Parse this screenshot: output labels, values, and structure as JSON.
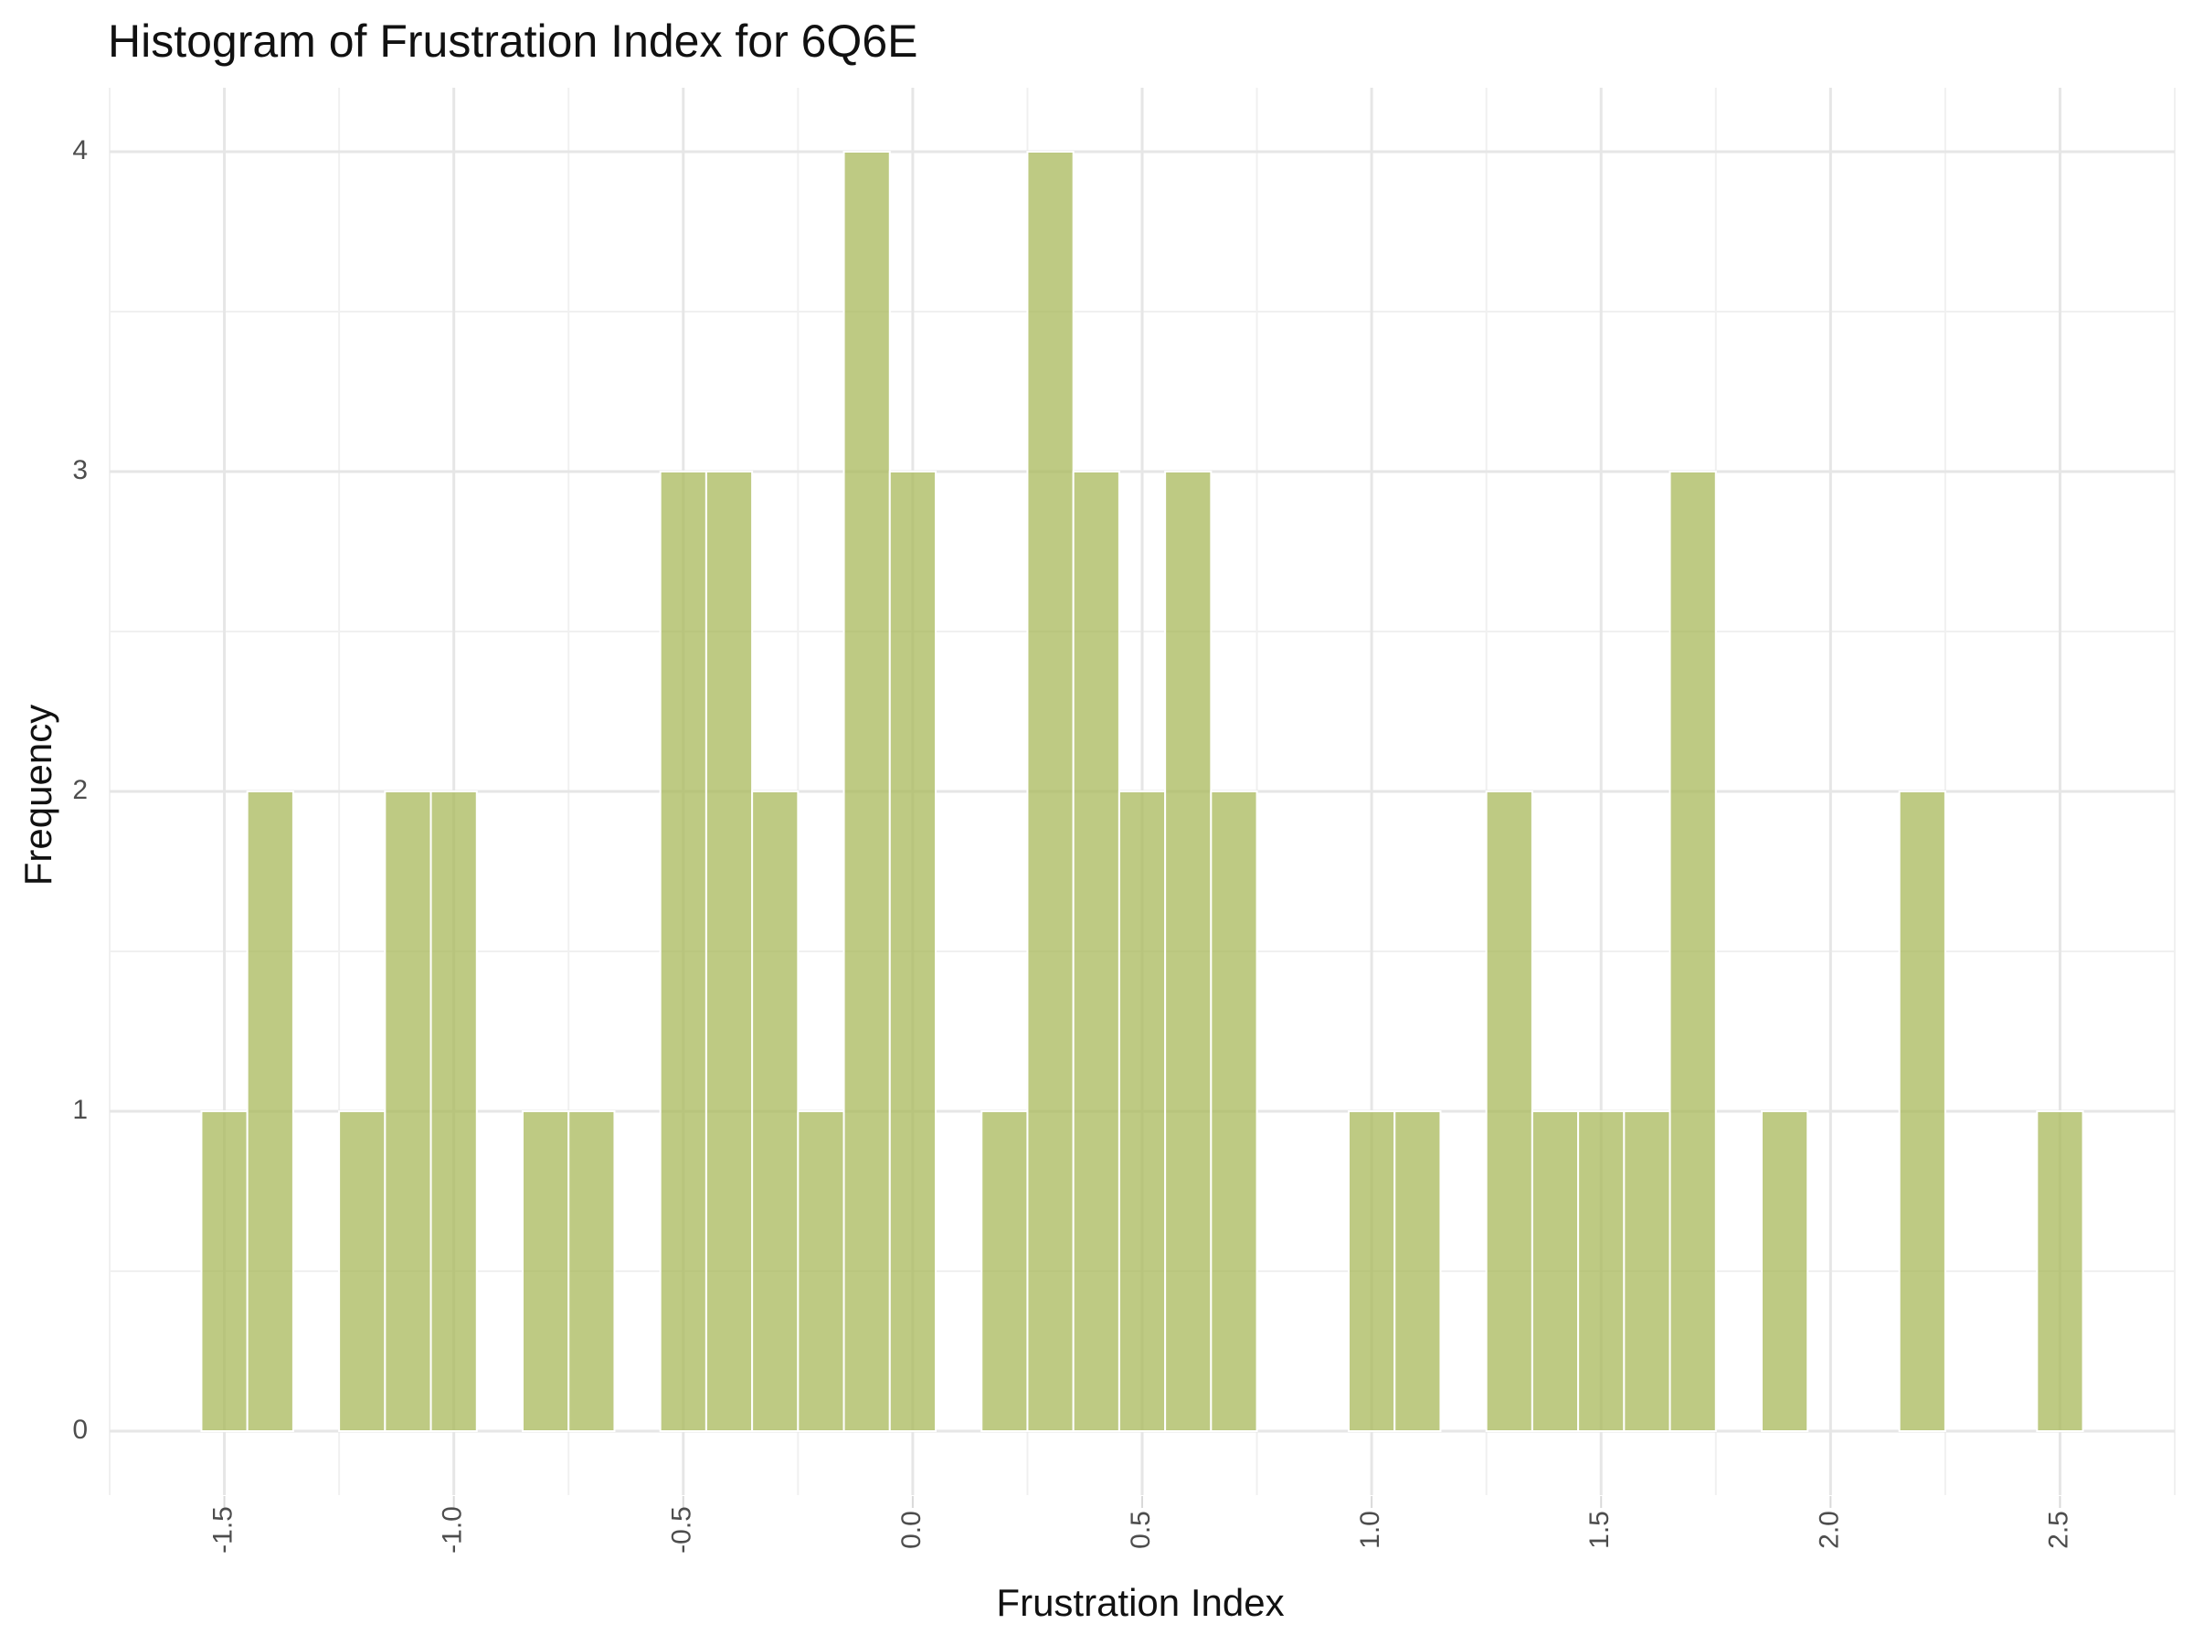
{
  "chart_data": {
    "type": "bar",
    "title": "Histogram of Frustration Index for 6Q6E",
    "xlabel": "Frustration Index",
    "ylabel": "Frequency",
    "xlim": [
      -1.75,
      2.75
    ],
    "ylim": [
      -0.2,
      4.2
    ],
    "bin_width": 0.1,
    "x_ticks": [
      -1.5,
      -1.0,
      -0.5,
      0.0,
      0.5,
      1.0,
      1.5,
      2.0,
      2.5
    ],
    "x_tick_labels": [
      "-1.5",
      "-1.0",
      "-0.5",
      "0.0",
      "0.5",
      "1.0",
      "1.5",
      "2.0",
      "2.5"
    ],
    "y_ticks": [
      0,
      1,
      2,
      3,
      4
    ],
    "y_tick_labels": [
      "0",
      "1",
      "2",
      "3",
      "4"
    ],
    "grid": true,
    "bar_color": "#a8b85a",
    "bins": [
      {
        "x": -1.5,
        "count": 1
      },
      {
        "x": -1.4,
        "count": 2
      },
      {
        "x": -1.2,
        "count": 1
      },
      {
        "x": -1.1,
        "count": 2
      },
      {
        "x": -1.0,
        "count": 2
      },
      {
        "x": -0.8,
        "count": 1
      },
      {
        "x": -0.7,
        "count": 1
      },
      {
        "x": -0.5,
        "count": 3
      },
      {
        "x": -0.4,
        "count": 3
      },
      {
        "x": -0.3,
        "count": 2
      },
      {
        "x": -0.2,
        "count": 1
      },
      {
        "x": -0.1,
        "count": 4
      },
      {
        "x": 0.0,
        "count": 3
      },
      {
        "x": 0.2,
        "count": 1
      },
      {
        "x": 0.3,
        "count": 4
      },
      {
        "x": 0.4,
        "count": 3
      },
      {
        "x": 0.5,
        "count": 2
      },
      {
        "x": 0.6,
        "count": 3
      },
      {
        "x": 0.7,
        "count": 2
      },
      {
        "x": 1.0,
        "count": 1
      },
      {
        "x": 1.1,
        "count": 1
      },
      {
        "x": 1.3,
        "count": 2
      },
      {
        "x": 1.4,
        "count": 1
      },
      {
        "x": 1.5,
        "count": 1
      },
      {
        "x": 1.6,
        "count": 1
      },
      {
        "x": 1.7,
        "count": 3
      },
      {
        "x": 1.9,
        "count": 1
      },
      {
        "x": 2.2,
        "count": 2
      },
      {
        "x": 2.5,
        "count": 1
      }
    ]
  }
}
